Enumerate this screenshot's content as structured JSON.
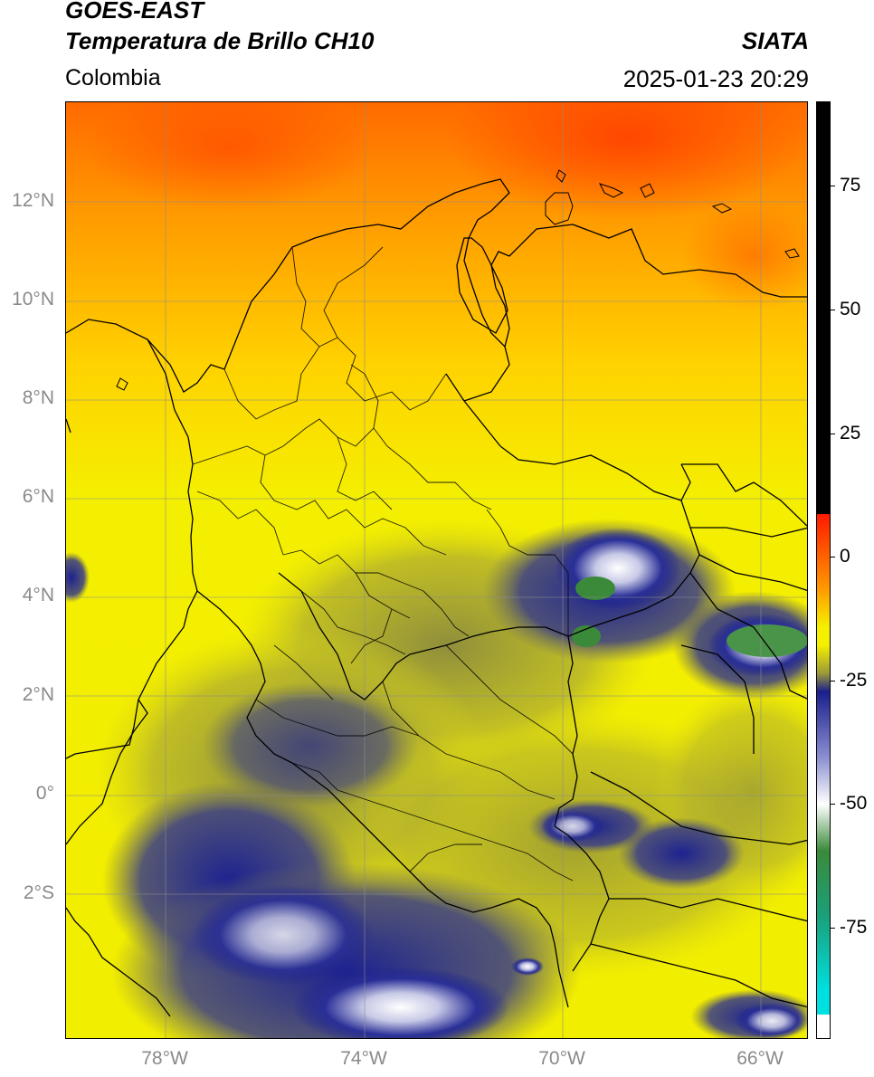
{
  "header": {
    "satellite": "GOES-EAST",
    "product": "Temperatura de Brillo CH10",
    "region": "Colombia",
    "agency": "SIATA",
    "datetime": "2025-01-23 20:29"
  },
  "map": {
    "latitude_labels": [
      "12°N",
      "10°N",
      "8°N",
      "6°N",
      "4°N",
      "2°N",
      "0°",
      "2°S"
    ],
    "longitude_labels": [
      "78°W",
      "74°W",
      "70°W",
      "66°W"
    ],
    "gridlines": true
  },
  "colorbar": {
    "tick_labels": [
      "75",
      "50",
      "25",
      "0",
      "-25",
      "-50",
      "-75"
    ],
    "colors": {
      "black": "#000000",
      "red": "#ff1a00",
      "orange": "#ff9900",
      "yellow": "#f5ef00",
      "olive": "#9c9a3a",
      "navy": "#1a1f8c",
      "white": "#ffffff",
      "green": "#3a8a3a",
      "cyan": "#00e0e0"
    }
  }
}
